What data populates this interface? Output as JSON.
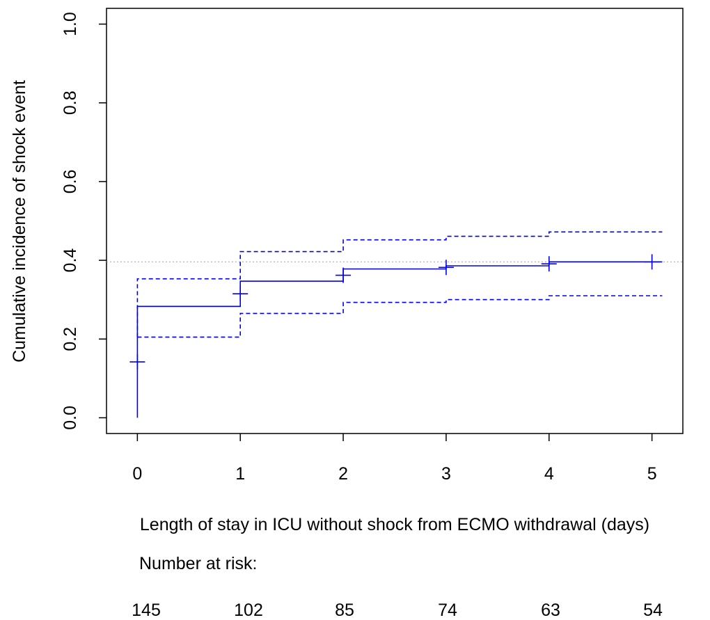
{
  "chart_data": {
    "type": "line",
    "title": "",
    "xlabel": "Length of stay in ICU without shock from ECMO withdrawal (days)",
    "ylabel": "Cumulative incidence of shock event",
    "xlim": [
      -0.3,
      5.3
    ],
    "ylim": [
      -0.04,
      1.04
    ],
    "x_ticks": [
      "0",
      "1",
      "2",
      "3",
      "4",
      "5"
    ],
    "x_tick_values": [
      0,
      1,
      2,
      3,
      4,
      5
    ],
    "y_ticks": [
      "0.0",
      "0.2",
      "0.4",
      "0.6",
      "0.8",
      "1.0"
    ],
    "y_tick_values": [
      0,
      0.2,
      0.4,
      0.6,
      0.8,
      1.0
    ],
    "grid": false,
    "reference_line": {
      "y": 0.396,
      "style": "dotted",
      "color": "#aaaaaa"
    },
    "series": [
      {
        "style": "solid",
        "color": "#0000ee",
        "x": [
          0,
          0,
          1,
          1,
          2,
          2,
          3,
          3,
          4,
          4,
          5.1
        ],
        "y": [
          0.0,
          0.283,
          0.283,
          0.347,
          0.347,
          0.378,
          0.378,
          0.386,
          0.386,
          0.396,
          0.396
        ]
      },
      {
        "style": "dashed",
        "color": "#0000ee",
        "x": [
          0,
          0,
          1,
          1,
          2,
          2,
          3,
          3,
          4,
          4,
          5.1
        ],
        "y": [
          0.205,
          0.353,
          0.353,
          0.422,
          0.422,
          0.452,
          0.452,
          0.461,
          0.461,
          0.472,
          0.472
        ]
      },
      {
        "style": "dashed",
        "color": "#0000ee",
        "x": [
          0,
          0,
          1,
          1,
          2,
          2,
          3,
          3,
          4,
          4,
          5.1
        ],
        "y": [
          0.205,
          0.205,
          0.205,
          0.265,
          0.265,
          0.293,
          0.293,
          0.3,
          0.3,
          0.31,
          0.31
        ]
      }
    ],
    "censor_marks": [
      {
        "x": 0,
        "y": 0.142
      },
      {
        "x": 1,
        "y": 0.315
      },
      {
        "x": 2,
        "y": 0.362
      },
      {
        "x": 3,
        "y": 0.382
      },
      {
        "x": 4,
        "y": 0.391
      },
      {
        "x": 5,
        "y": 0.396
      }
    ],
    "risk_table": {
      "label": "Number at risk:",
      "values": [
        "145",
        "102",
        "85",
        "74",
        "63",
        "54"
      ]
    }
  }
}
